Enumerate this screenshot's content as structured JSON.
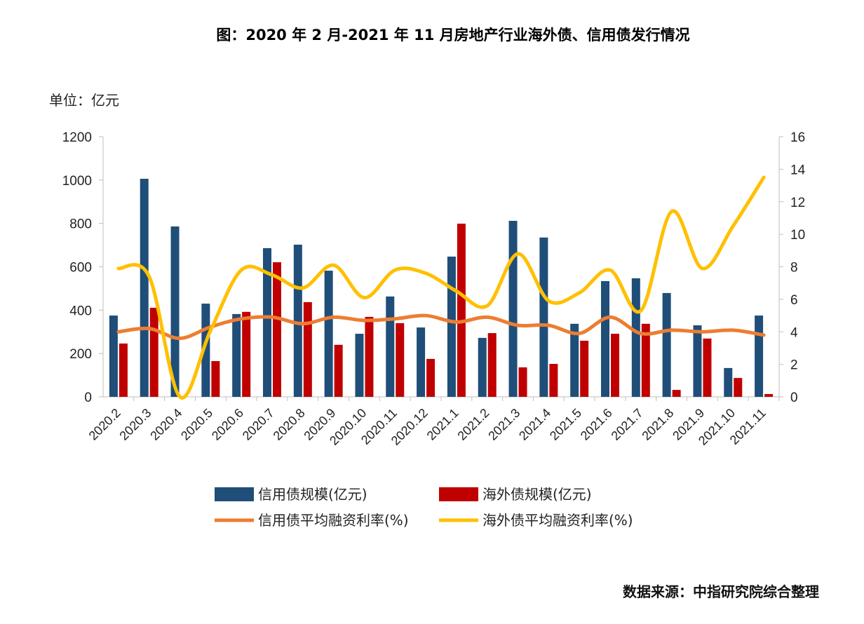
{
  "chart_data": {
    "type": "bar",
    "title": "图：2020 年 2 月-2021 年 11 月房地产行业海外债、信用债发行情况",
    "unit_label": "单位：亿元",
    "source": "数据来源：中指研究院综合整理",
    "categories": [
      "2020.2",
      "2020.3",
      "2020.4",
      "2020.5",
      "2020.6",
      "2020.7",
      "2020.8",
      "2020.9",
      "2020.10",
      "2020.11",
      "2020.12",
      "2021.1",
      "2021.2",
      "2021.3",
      "2021.4",
      "2021.5",
      "2021.6",
      "2021.7",
      "2021.8",
      "2021.9",
      "2021.10",
      "2021.11"
    ],
    "y_left": {
      "range": [
        0,
        1200
      ],
      "ticks": [
        0,
        200,
        400,
        600,
        800,
        1000,
        1200
      ]
    },
    "y_right": {
      "range": [
        0,
        16
      ],
      "ticks": [
        0,
        2,
        4,
        6,
        8,
        10,
        12,
        14,
        16
      ]
    },
    "grid": false,
    "legend_position": "bottom",
    "series": [
      {
        "name": "信用债规模(亿元)",
        "type": "bar",
        "axis": "left",
        "color": "#1f4e79",
        "values": [
          375,
          1006,
          786,
          430,
          382,
          686,
          702,
          582,
          291,
          463,
          320,
          647,
          272,
          812,
          735,
          337,
          534,
          547,
          479,
          330,
          133,
          375
        ]
      },
      {
        "name": "海外债规模(亿元)",
        "type": "bar",
        "axis": "left",
        "color": "#c00000",
        "values": [
          246,
          411,
          0,
          165,
          392,
          621,
          437,
          240,
          369,
          340,
          175,
          799,
          294,
          136,
          152,
          259,
          291,
          337,
          32,
          269,
          87,
          13
        ]
      },
      {
        "name": "信用债平均融资利率(%)",
        "type": "line",
        "axis": "right",
        "color": "#ed7d31",
        "values": [
          4.0,
          4.2,
          3.6,
          4.3,
          4.8,
          4.9,
          4.5,
          4.9,
          4.7,
          4.8,
          5.0,
          4.6,
          4.9,
          4.4,
          4.4,
          3.9,
          4.9,
          3.9,
          4.1,
          4.0,
          4.1,
          3.8
        ]
      },
      {
        "name": "海外债平均融资利率(%)",
        "type": "line",
        "axis": "right",
        "color": "#ffc000",
        "values": [
          7.9,
          7.4,
          0,
          4.1,
          7.8,
          7.5,
          6.7,
          8.1,
          6.1,
          7.8,
          7.6,
          6.5,
          5.6,
          8.8,
          5.9,
          6.4,
          7.8,
          5.3,
          11.4,
          7.9,
          10.5,
          13.5
        ]
      }
    ]
  }
}
